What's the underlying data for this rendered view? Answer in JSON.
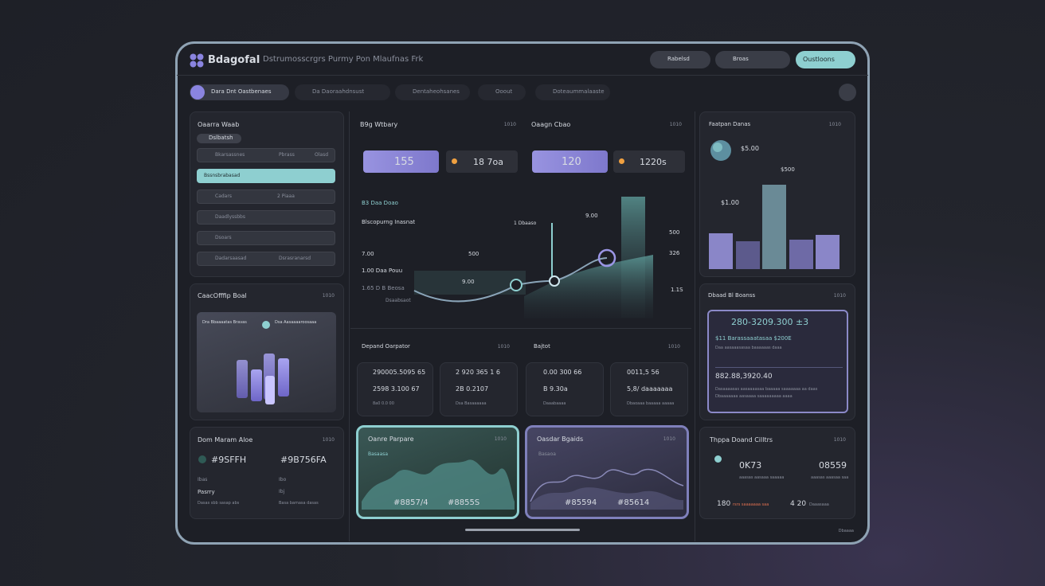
{
  "header": {
    "logo": "BdagofaI",
    "subtitle": "Dstrumosscrgrs Purmy Pon Mlaufnas Frk",
    "buttons": [
      "Rabelsd",
      "Broas",
      "Oustloons"
    ]
  },
  "tabs": [
    "Dara Dnt Oastbenaes",
    "Da Daoraahdnsust",
    "Dentaheohsanes",
    "Ooout",
    "Doteaummalaaste"
  ],
  "filter_panel": {
    "title": "Oaarra Waab",
    "chip": "Dslbatsh",
    "rows": [
      [
        "Bkarsassnes",
        "Pbrass",
        "Olasd"
      ],
      [
        "Bssnsbrabasad"
      ],
      [
        "Cadars",
        "2 Piaaa"
      ],
      [
        "Daadlyssbbs"
      ],
      [
        "Dsoars"
      ],
      [
        "Dadarsaasad",
        "Dsrasranarsd"
      ]
    ]
  },
  "chart_panel": {
    "title": "CaacOfffip Boal",
    "badge": "1010",
    "labels": [
      "Dra Bbaaaatas Bravas",
      "Dsa Aasaaaaroosaaa"
    ]
  },
  "color_panel": {
    "title": "Dom Maram Aloe",
    "badge": "1010",
    "swatches": [
      "#9SFFH",
      "#9B756FA"
    ],
    "rows": [
      [
        "Ibas",
        "Ibo"
      ],
      [
        "Pasrry",
        "Ibj"
      ],
      [
        "Dasas sbb sasap abs",
        "Basa bamasa dasas"
      ]
    ]
  },
  "trend": {
    "left_title": "B9g Wtbary",
    "left_badge": "1010",
    "right_title": "Oaagn Cbao",
    "right_badge": "1010",
    "cards": [
      "155",
      "18 7oa",
      "120",
      "1220s"
    ],
    "labels": [
      "B3 Daa Doao",
      "Blscopurng Inasnat",
      "1 Dbaaso",
      "9.00",
      "500",
      "326",
      "1.1S",
      "7.00",
      "500",
      "1.00 Daa Pouu",
      "1.65 D B Beosa",
      "9.00",
      "Dsaabsaot"
    ]
  },
  "overview": {
    "left_title": "Depand Oarpator",
    "left_badge": "1010",
    "right_title": "Bajtot",
    "right_badge": "1010",
    "cards": [
      [
        "290005.5095 65",
        "2598 3.100 67",
        "8a0 0.0 00"
      ],
      [
        "2 920 365 1 6",
        "2B 0.2107",
        "Dsa Basaaaaaa"
      ],
      [
        "0.00 300 66",
        "B 9.30a",
        "Daaabaaaa"
      ],
      [
        "0011,5 56",
        "5,8/ daaaaaaa",
        "Dbaoaaa baaaaa aaaaa"
      ]
    ]
  },
  "sparks": [
    {
      "title": "Oanre Parpare",
      "badge": "1010",
      "caption": "Basaasa",
      "values": [
        "#8857/4",
        "#8855S"
      ]
    },
    {
      "title": "Oasdar Bgaids",
      "badge": "1010",
      "caption": "Basaoa",
      "values": [
        "#85594",
        "#85614"
      ]
    }
  ],
  "forecast": {
    "title": "Faatpan Danas",
    "badge": "1010",
    "values": [
      "$5.00",
      "$500",
      "$1.00"
    ]
  },
  "balance": {
    "title": "Dbaad Bl Boanss",
    "badge": "1010",
    "amount": "280-3209.300 ±3",
    "line": "$11 Barassaaatasaa $200E",
    "note": "Daa aasaaasasaa baaaaaas daaa",
    "total": "882.88,3920.40",
    "desc": [
      "Dasaaaasas aasaaaasaa baaaaa saaaaaaa aa daas",
      "Dbaaaaaaa aasaaaa saaaaaaaaa aaaa"
    ]
  },
  "totals": {
    "title": "Thppa Doand Cilltrs",
    "badge": "1010",
    "values": [
      "0K73",
      "08559"
    ],
    "captions": [
      "aaasas aasaaa saaaaa",
      "aaasas aaasaa saa"
    ],
    "footer": [
      [
        "180",
        "rsrs saaaaaaa saa"
      ],
      [
        "4 20",
        "Daaasaaa"
      ]
    ],
    "more": "Dbaaaa"
  }
}
